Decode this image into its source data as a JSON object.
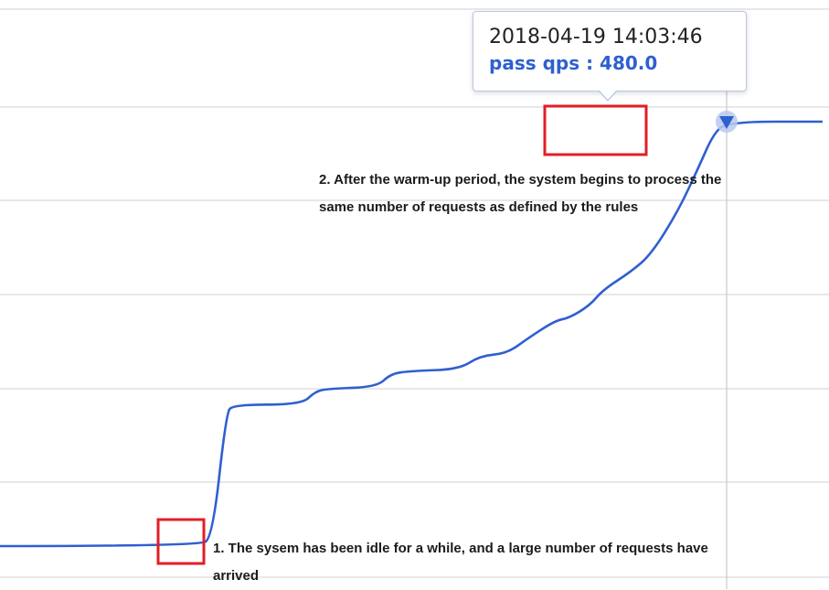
{
  "chart_data": {
    "type": "line",
    "title": "",
    "xlabel": "",
    "ylabel": "",
    "grid": true,
    "ylim": [
      0,
      530
    ],
    "series": [
      {
        "name": "pass qps",
        "color": "#2f5fd0",
        "x": [
          0,
          29,
          31,
          33,
          34,
          44,
          46,
          48,
          55,
          57,
          60,
          67,
          70,
          74,
          77,
          81,
          83,
          86,
          88,
          92,
          95,
          99,
          102,
          104,
          106,
          120
        ],
        "values": [
          0,
          0,
          10,
          150,
          160,
          160,
          175,
          178,
          180,
          195,
          198,
          200,
          215,
          218,
          235,
          255,
          258,
          272,
          290,
          310,
          330,
          380,
          430,
          465,
          480,
          480
        ]
      }
    ]
  },
  "tooltip": {
    "time": "2018-04-19 14:03:46",
    "value_text": "pass qps : 480.0"
  },
  "annotations": {
    "note1_line1": "1. The sysem has been idle for a while, and a large number of requests have",
    "note1_line2": "arrived",
    "note2_line1": "2. After the warm-up period, the system begins to process the",
    "note2_line2": "same number of requests as defined by the rules"
  },
  "colors": {
    "line": "#2f5fd0",
    "grid": "#d9d9d9",
    "highlight": "#e21e26",
    "crosshair": "#c9c9c9"
  }
}
